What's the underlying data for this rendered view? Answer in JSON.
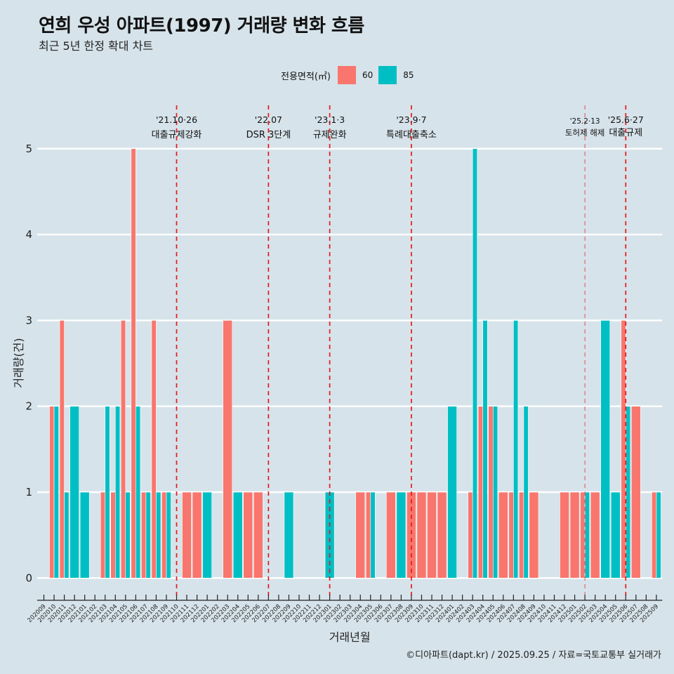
{
  "title": "연희 우성 아파트(1997) 거래량 변화 흐름",
  "subtitle": "최근 5년 한정 확대 차트",
  "legend": {
    "title": "전용면적(㎡)",
    "items": [
      {
        "label": "60",
        "color": "#F8766D"
      },
      {
        "label": "85",
        "color": "#00BFC4"
      }
    ]
  },
  "caption": "©디아파트(dapt.kr) / 2025.09.25 / 자료=국토교통부 실거래가",
  "chart_data": {
    "type": "bar",
    "position": "dodge",
    "title": "연희 우성 아파트(1997) 거래량 변화 흐름",
    "subtitle": "최근 5년 한정 확대 차트",
    "xlabel": "거래년월",
    "ylabel": "거래량(건)",
    "ylim": [
      0,
      5
    ],
    "yticks": [
      "0",
      "1",
      "2",
      "3",
      "4",
      "5"
    ],
    "grid": "horizontal-major",
    "legend_position": "top",
    "background": "#d6e3ea",
    "event_line_color": "#e41a1c",
    "categories": [
      "202009",
      "202010",
      "202011",
      "202012",
      "202101",
      "202102",
      "202103",
      "202104",
      "202105",
      "202106",
      "202107",
      "202108",
      "202109",
      "202110",
      "202111",
      "202112",
      "202201",
      "202202",
      "202203",
      "202204",
      "202205",
      "202206",
      "202207",
      "202208",
      "202209",
      "202210",
      "202211",
      "202212",
      "202301",
      "202302",
      "202303",
      "202304",
      "202305",
      "202306",
      "202307",
      "202308",
      "202309",
      "202310",
      "202311",
      "202312",
      "202401",
      "202402",
      "202403",
      "202404",
      "202405",
      "202406",
      "202407",
      "202408",
      "202409",
      "202410",
      "202411",
      "202412",
      "202501",
      "202502",
      "202503",
      "202504",
      "202505",
      "202506",
      "202507",
      "202508",
      "202509"
    ],
    "series": [
      {
        "name": "60",
        "color": "#F8766D",
        "values": [
          null,
          2,
          3,
          null,
          null,
          null,
          1,
          1,
          3,
          5,
          1,
          3,
          1,
          null,
          1,
          1,
          null,
          null,
          3,
          null,
          1,
          1,
          null,
          null,
          null,
          null,
          null,
          null,
          null,
          null,
          null,
          1,
          1,
          null,
          1,
          null,
          1,
          1,
          1,
          1,
          null,
          null,
          1,
          2,
          2,
          1,
          1,
          1,
          1,
          null,
          null,
          1,
          1,
          1,
          1,
          null,
          null,
          3,
          2,
          null,
          1
        ]
      },
      {
        "name": "85",
        "color": "#00BFC4",
        "values": [
          null,
          2,
          1,
          2,
          1,
          null,
          2,
          2,
          1,
          2,
          1,
          1,
          1,
          null,
          null,
          null,
          1,
          null,
          null,
          1,
          null,
          null,
          null,
          null,
          1,
          null,
          null,
          null,
          1,
          null,
          null,
          null,
          1,
          null,
          null,
          1,
          null,
          null,
          null,
          null,
          2,
          null,
          5,
          3,
          2,
          null,
          3,
          2,
          null,
          null,
          null,
          null,
          null,
          1,
          null,
          3,
          1,
          2,
          null,
          null,
          1
        ]
      }
    ],
    "events": [
      {
        "month": "202110",
        "date": "'21.10·26",
        "label": "대출규제강화",
        "weight": "normal"
      },
      {
        "month": "202207",
        "date": "'22.07",
        "label": "DSR 3단계",
        "weight": "normal"
      },
      {
        "month": "202301",
        "date": "'23.1·3",
        "label": "규제완화",
        "weight": "normal"
      },
      {
        "month": "202309",
        "date": "'23.9·7",
        "label": "특례대출축소",
        "weight": "normal"
      },
      {
        "month": "202502",
        "date": "'25.2·13",
        "label": "토허제 해제",
        "weight": "light"
      },
      {
        "month": "202506",
        "date": "'25.6·27",
        "label": "대출규제",
        "weight": "normal"
      }
    ]
  }
}
